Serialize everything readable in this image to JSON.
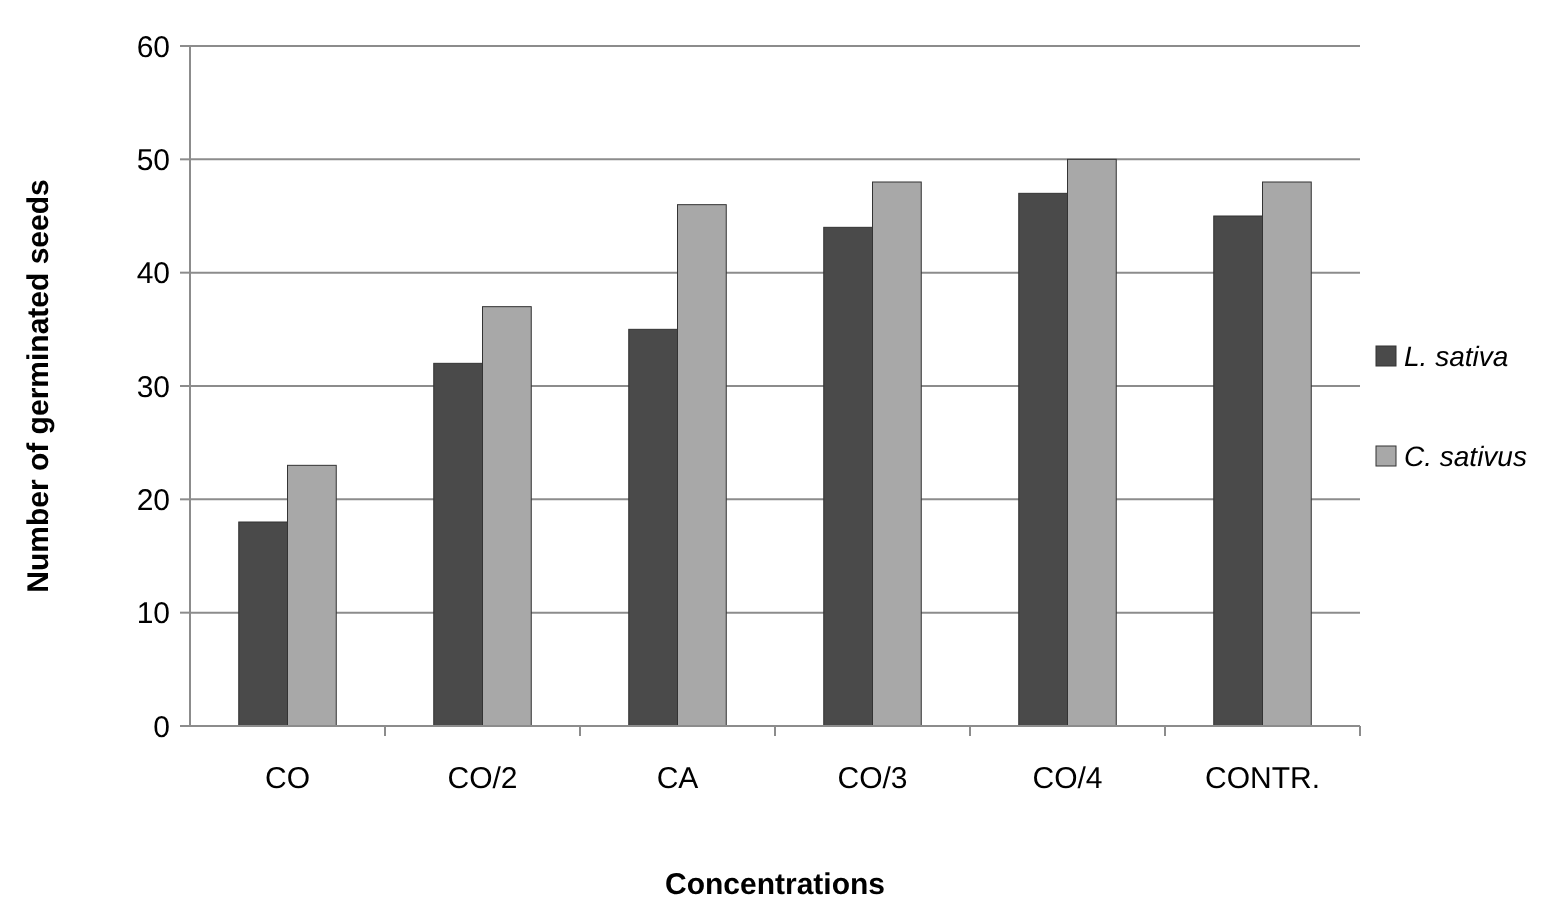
{
  "chart_data": {
    "type": "bar",
    "xlabel": "Concentrations",
    "ylabel": "Number of germinated seeds",
    "categories": [
      "CO",
      "CO/2",
      "CA",
      "CO/3",
      "CO/4",
      "CONTR."
    ],
    "series": [
      {
        "name": "L. sativa",
        "color": "#4a4a4a",
        "values": [
          18,
          32,
          35,
          44,
          47,
          45
        ]
      },
      {
        "name": "C. sativus",
        "color": "#a8a8a8",
        "values": [
          23,
          37,
          46,
          48,
          50,
          48
        ]
      }
    ],
    "ylim": [
      0,
      60
    ],
    "yticks": [
      0,
      10,
      20,
      30,
      40,
      50,
      60
    ],
    "grid": "y",
    "legend": "right"
  }
}
